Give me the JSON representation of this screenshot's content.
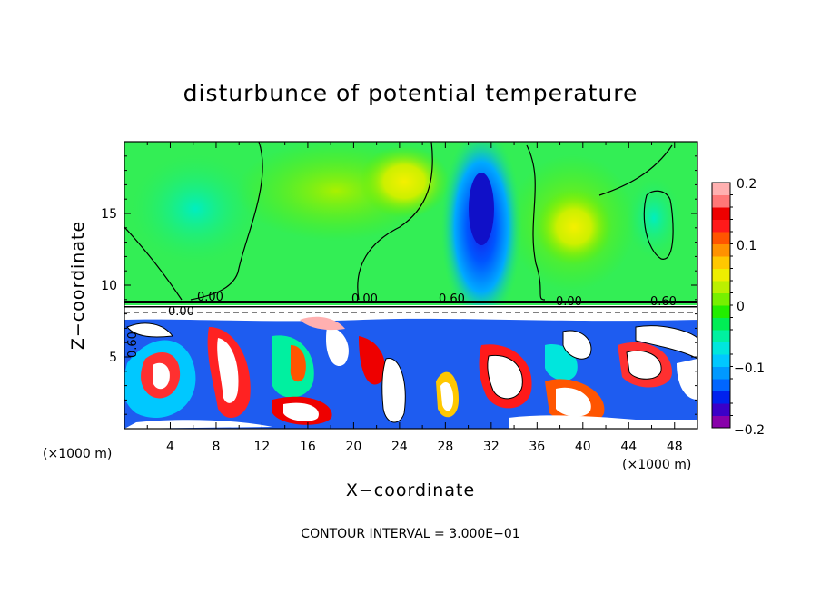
{
  "chart_data": {
    "type": "heatmap",
    "title": "disturbunce of potential temperature",
    "xlabel": "X−coordinate",
    "ylabel": "Z−coordinate",
    "x_unit_label": "(×1000 m)",
    "z_unit_label": "(×1000 m)",
    "xlim": [
      0,
      50
    ],
    "ylim": [
      0,
      20
    ],
    "x_ticks": [
      "4",
      "8",
      "12",
      "16",
      "20",
      "24",
      "28",
      "32",
      "36",
      "40",
      "44",
      "48"
    ],
    "y_ticks": [
      "5",
      "10",
      "15"
    ],
    "colorbar": {
      "range": [
        -0.2,
        0.2
      ],
      "tick_labels": [
        "0.2",
        "0.1",
        "0",
        "−0.1",
        "−0.2"
      ],
      "colors": [
        "#8800aa",
        "#3a00c8",
        "#0022ee",
        "#0066ff",
        "#0099ff",
        "#00c8ff",
        "#00e6dd",
        "#00f0a0",
        "#00ee55",
        "#22ee00",
        "#77f000",
        "#bbf000",
        "#eeee00",
        "#ffc800",
        "#ff9200",
        "#ff5500",
        "#ff1a1a",
        "#ee0000",
        "#ff7777",
        "#ffb0b0"
      ]
    },
    "contour_labels": [
      "0.00",
      "0.00",
      "0.60",
      "0.00",
      "0.60",
      "0.00",
      "0.60"
    ],
    "inversion_layer_height": 8.7,
    "features": [
      {
        "kind": "cold-anomaly",
        "x": 30.5,
        "z": 15.5,
        "value": -0.16
      },
      {
        "kind": "warm-anomaly",
        "x": 39,
        "z": 14,
        "value": 0.07
      },
      {
        "kind": "warm-anomaly",
        "x": 17,
        "z": 16,
        "value": 0.05
      }
    ],
    "footnote": "CONTOUR INTERVAL = 3.000E−01"
  }
}
